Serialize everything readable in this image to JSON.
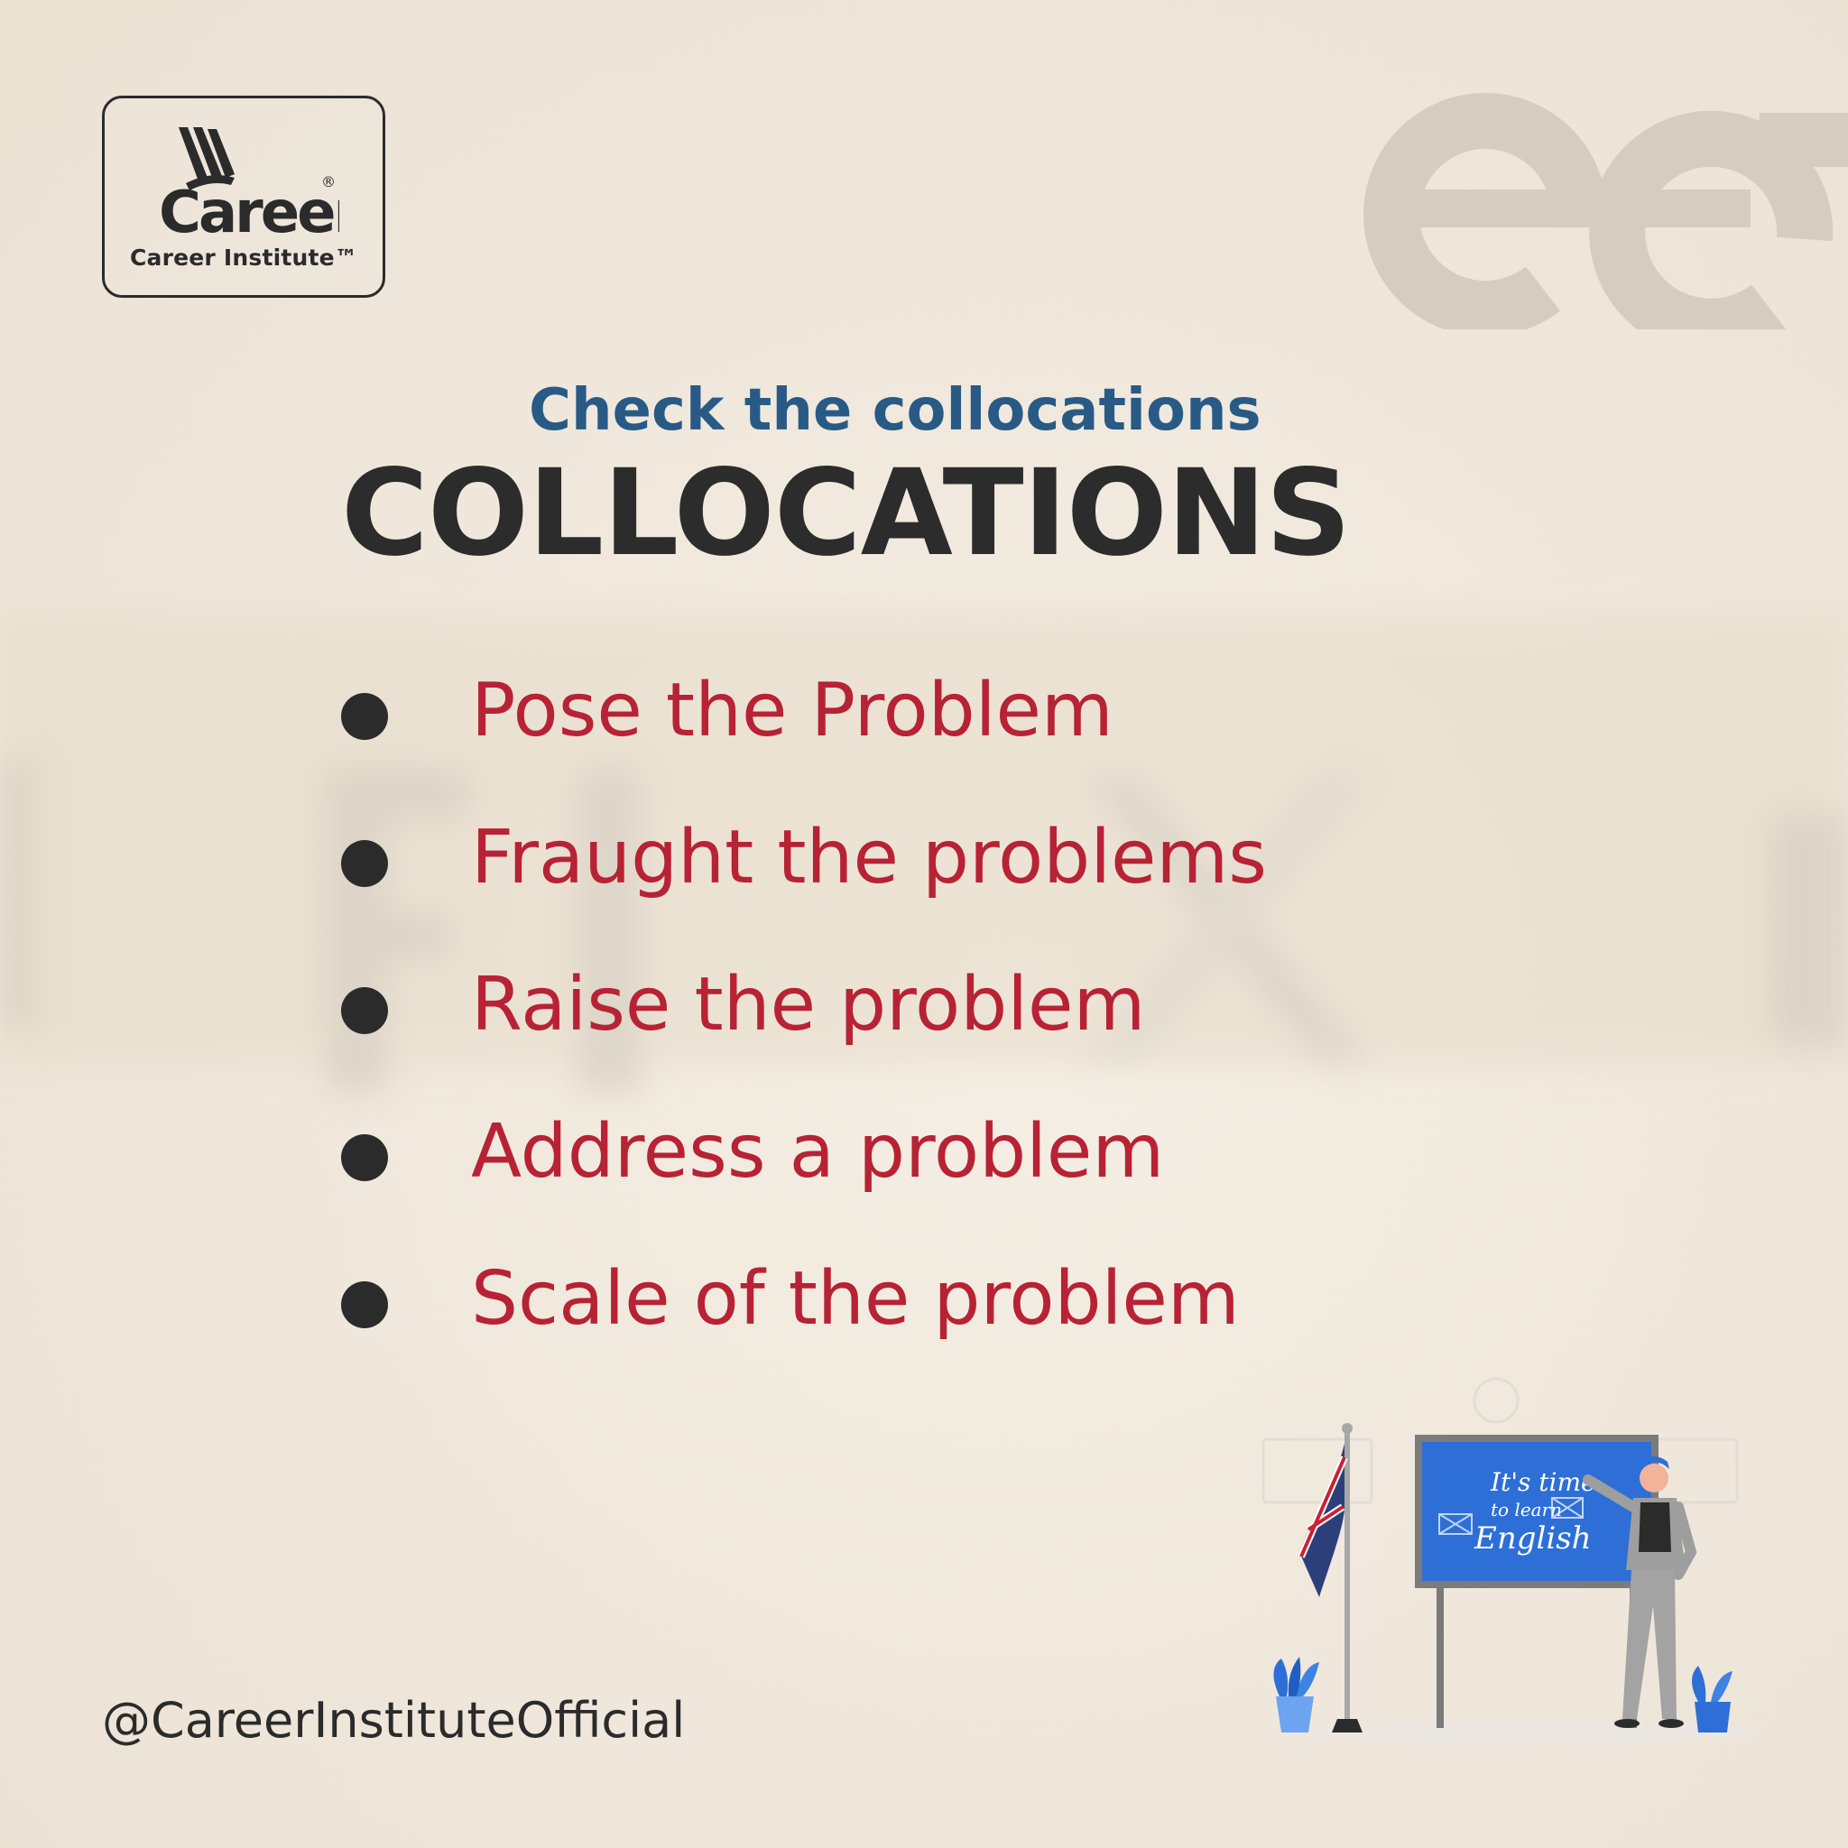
{
  "logo": {
    "wordmark": "Career",
    "tagline": "Career Institute™",
    "registered": "®"
  },
  "header": {
    "subtitle": "Check the collocations",
    "title": "COLLOCATIONS"
  },
  "collocations": [
    {
      "text": "Pose the Problem"
    },
    {
      "text": "Fraught the problems"
    },
    {
      "text": "Raise the problem"
    },
    {
      "text": "Address a problem"
    },
    {
      "text": "Scale of the problem"
    }
  ],
  "footer": {
    "handle": "@CareerInstituteOfficial"
  },
  "illustration": {
    "board_line1": "It's time",
    "board_line2": "to learn",
    "board_line3": "English"
  },
  "colors": {
    "subtitle": "#285a85",
    "title": "#2c2c2c",
    "item_text": "#b72234",
    "bullet": "#2b2b2b",
    "board": "#2d6fd6"
  }
}
